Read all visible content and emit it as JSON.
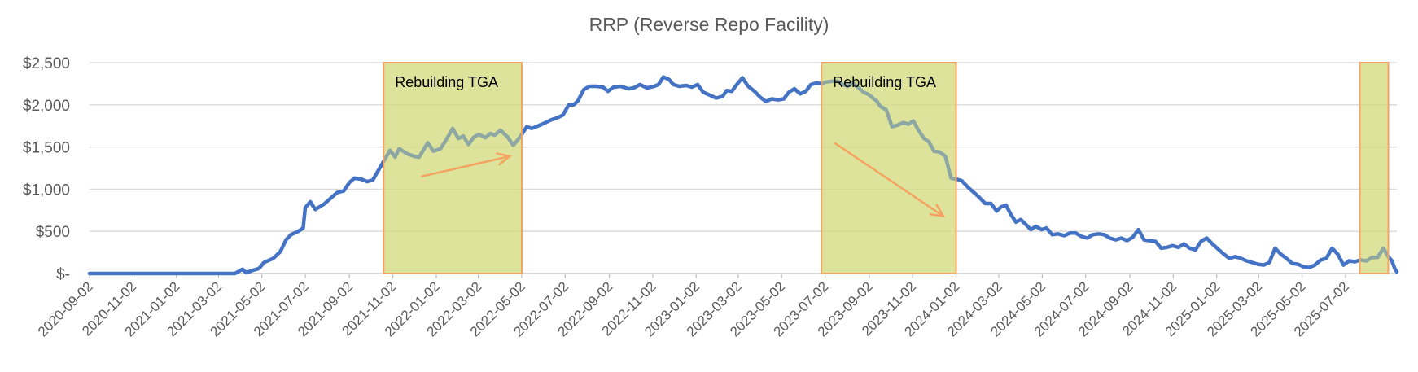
{
  "chart_data": {
    "type": "line",
    "title": "RRP (Reverse Repo Facility)",
    "xlabel": "",
    "ylabel": "",
    "ylim": [
      0,
      2500
    ],
    "y_ticks": [
      0,
      500,
      1000,
      1500,
      2000,
      2500
    ],
    "y_tick_labels": [
      "$-",
      "$500",
      "$1,000",
      "$1,500",
      "$2,000",
      "$2,500"
    ],
    "x_range": [
      "2020-09-02",
      "2025-09-12"
    ],
    "x_tick_labels": [
      "2020-09-02",
      "2020-11-02",
      "2021-01-02",
      "2021-03-02",
      "2021-05-02",
      "2021-07-02",
      "2021-09-02",
      "2021-11-02",
      "2022-01-02",
      "2022-03-02",
      "2022-05-02",
      "2022-07-02",
      "2022-09-02",
      "2022-11-02",
      "2023-01-02",
      "2023-03-02",
      "2023-05-02",
      "2023-07-02",
      "2023-09-02",
      "2023-11-02",
      "2024-01-02",
      "2024-03-02",
      "2024-05-02",
      "2024-07-02",
      "2024-09-02",
      "2024-11-02",
      "2025-01-02",
      "2025-03-02",
      "2025-05-02",
      "2025-07-02"
    ],
    "grid": true,
    "line_color": "#4472c4",
    "highlight_fill": "#d6dc82",
    "highlight_border": "#f4a460",
    "arrow_color": "#f4a460",
    "highlights": [
      {
        "label": "Rebuilding TGA",
        "x_start": "2021-10-20",
        "x_end": "2022-05-02",
        "arrow": {
          "from": [
            "2021-12-12",
            1150
          ],
          "to": [
            "2022-04-15",
            1390
          ]
        }
      },
      {
        "label": "Rebuilding TGA",
        "x_start": "2023-06-27",
        "x_end": "2024-01-02",
        "arrow": {
          "from": [
            "2023-07-15",
            1550
          ],
          "to": [
            "2023-12-15",
            680
          ]
        }
      },
      {
        "label": "",
        "x_start": "2025-07-22",
        "x_end": "2025-08-31"
      }
    ],
    "series": [
      {
        "points": [
          [
            "2020-09-02",
            0
          ],
          [
            "2020-12-01",
            0
          ],
          [
            "2021-03-01",
            0
          ],
          [
            "2021-03-25",
            0
          ],
          [
            "2021-04-05",
            50
          ],
          [
            "2021-04-10",
            10
          ],
          [
            "2021-04-20",
            40
          ],
          [
            "2021-04-28",
            60
          ],
          [
            "2021-05-05",
            130
          ],
          [
            "2021-05-18",
            180
          ],
          [
            "2021-05-28",
            260
          ],
          [
            "2021-06-05",
            400
          ],
          [
            "2021-06-12",
            460
          ],
          [
            "2021-06-22",
            500
          ],
          [
            "2021-06-29",
            540
          ],
          [
            "2021-07-02",
            780
          ],
          [
            "2021-07-09",
            850
          ],
          [
            "2021-07-16",
            760
          ],
          [
            "2021-07-28",
            820
          ],
          [
            "2021-08-09",
            910
          ],
          [
            "2021-08-16",
            960
          ],
          [
            "2021-08-25",
            980
          ],
          [
            "2021-09-02",
            1080
          ],
          [
            "2021-09-09",
            1130
          ],
          [
            "2021-09-18",
            1120
          ],
          [
            "2021-09-27",
            1090
          ],
          [
            "2021-10-05",
            1110
          ],
          [
            "2021-10-18",
            1300
          ],
          [
            "2021-10-29",
            1460
          ],
          [
            "2021-11-05",
            1380
          ],
          [
            "2021-11-11",
            1480
          ],
          [
            "2021-11-22",
            1420
          ],
          [
            "2021-12-02",
            1390
          ],
          [
            "2021-12-09",
            1380
          ],
          [
            "2021-12-21",
            1550
          ],
          [
            "2021-12-29",
            1450
          ],
          [
            "2022-01-08",
            1480
          ],
          [
            "2022-01-17",
            1600
          ],
          [
            "2022-01-25",
            1720
          ],
          [
            "2022-02-02",
            1600
          ],
          [
            "2022-02-09",
            1630
          ],
          [
            "2022-02-16",
            1530
          ],
          [
            "2022-02-24",
            1620
          ],
          [
            "2022-03-03",
            1650
          ],
          [
            "2022-03-12",
            1610
          ],
          [
            "2022-03-19",
            1660
          ],
          [
            "2022-03-25",
            1640
          ],
          [
            "2022-04-02",
            1700
          ],
          [
            "2022-04-12",
            1620
          ],
          [
            "2022-04-20",
            1520
          ],
          [
            "2022-04-26",
            1580
          ],
          [
            "2022-05-02",
            1650
          ],
          [
            "2022-05-09",
            1740
          ],
          [
            "2022-05-16",
            1720
          ],
          [
            "2022-05-25",
            1750
          ],
          [
            "2022-06-02",
            1780
          ],
          [
            "2022-06-12",
            1820
          ],
          [
            "2022-06-22",
            1850
          ],
          [
            "2022-06-29",
            1880
          ],
          [
            "2022-07-07",
            2000
          ],
          [
            "2022-07-14",
            2000
          ],
          [
            "2022-07-20",
            2050
          ],
          [
            "2022-07-28",
            2180
          ],
          [
            "2022-08-05",
            2220
          ],
          [
            "2022-08-15",
            2220
          ],
          [
            "2022-08-24",
            2210
          ],
          [
            "2022-08-31",
            2160
          ],
          [
            "2022-09-08",
            2210
          ],
          [
            "2022-09-18",
            2220
          ],
          [
            "2022-09-29",
            2190
          ],
          [
            "2022-10-06",
            2200
          ],
          [
            "2022-10-15",
            2240
          ],
          [
            "2022-10-25",
            2200
          ],
          [
            "2022-11-04",
            2220
          ],
          [
            "2022-11-10",
            2240
          ],
          [
            "2022-11-17",
            2330
          ],
          [
            "2022-11-25",
            2300
          ],
          [
            "2022-12-01",
            2240
          ],
          [
            "2022-12-09",
            2220
          ],
          [
            "2022-12-19",
            2230
          ],
          [
            "2022-12-27",
            2210
          ],
          [
            "2023-01-04",
            2240
          ],
          [
            "2023-01-12",
            2150
          ],
          [
            "2023-01-20",
            2120
          ],
          [
            "2023-01-30",
            2080
          ],
          [
            "2023-02-08",
            2100
          ],
          [
            "2023-02-14",
            2170
          ],
          [
            "2023-02-21",
            2160
          ],
          [
            "2023-02-28",
            2240
          ],
          [
            "2023-03-08",
            2320
          ],
          [
            "2023-03-16",
            2220
          ],
          [
            "2023-03-25",
            2160
          ],
          [
            "2023-04-02",
            2090
          ],
          [
            "2023-04-10",
            2040
          ],
          [
            "2023-04-18",
            2070
          ],
          [
            "2023-04-27",
            2060
          ],
          [
            "2023-05-05",
            2070
          ],
          [
            "2023-05-12",
            2150
          ],
          [
            "2023-05-20",
            2190
          ],
          [
            "2023-05-28",
            2130
          ],
          [
            "2023-06-05",
            2160
          ],
          [
            "2023-06-12",
            2240
          ],
          [
            "2023-06-20",
            2260
          ],
          [
            "2023-06-27",
            2250
          ],
          [
            "2023-07-03",
            2270
          ],
          [
            "2023-07-12",
            2280
          ],
          [
            "2023-07-20",
            2280
          ],
          [
            "2023-07-27",
            2240
          ],
          [
            "2023-08-03",
            2220
          ],
          [
            "2023-08-10",
            2260
          ],
          [
            "2023-08-18",
            2200
          ],
          [
            "2023-08-25",
            2150
          ],
          [
            "2023-09-02",
            2120
          ],
          [
            "2023-09-07",
            2080
          ],
          [
            "2023-09-12",
            2050
          ],
          [
            "2023-09-18",
            1980
          ],
          [
            "2023-09-26",
            1940
          ],
          [
            "2023-10-04",
            1740
          ],
          [
            "2023-10-12",
            1760
          ],
          [
            "2023-10-20",
            1790
          ],
          [
            "2023-10-27",
            1770
          ],
          [
            "2023-11-03",
            1810
          ],
          [
            "2023-11-10",
            1700
          ],
          [
            "2023-11-18",
            1600
          ],
          [
            "2023-11-25",
            1560
          ],
          [
            "2023-12-02",
            1450
          ],
          [
            "2023-12-10",
            1440
          ],
          [
            "2023-12-18",
            1390
          ],
          [
            "2023-12-26",
            1130
          ],
          [
            "2024-01-02",
            1120
          ],
          [
            "2024-01-10",
            1100
          ],
          [
            "2024-01-19",
            1020
          ],
          [
            "2024-01-27",
            960
          ],
          [
            "2024-02-04",
            900
          ],
          [
            "2024-02-12",
            830
          ],
          [
            "2024-02-20",
            830
          ],
          [
            "2024-02-28",
            740
          ],
          [
            "2024-03-05",
            790
          ],
          [
            "2024-03-12",
            810
          ],
          [
            "2024-03-19",
            700
          ],
          [
            "2024-03-26",
            610
          ],
          [
            "2024-04-02",
            640
          ],
          [
            "2024-04-09",
            580
          ],
          [
            "2024-04-16",
            520
          ],
          [
            "2024-04-23",
            560
          ],
          [
            "2024-05-01",
            520
          ],
          [
            "2024-05-08",
            540
          ],
          [
            "2024-05-16",
            460
          ],
          [
            "2024-05-24",
            470
          ],
          [
            "2024-06-02",
            450
          ],
          [
            "2024-06-10",
            480
          ],
          [
            "2024-06-18",
            480
          ],
          [
            "2024-06-26",
            440
          ],
          [
            "2024-07-04",
            420
          ],
          [
            "2024-07-12",
            460
          ],
          [
            "2024-07-20",
            470
          ],
          [
            "2024-07-28",
            460
          ],
          [
            "2024-08-05",
            420
          ],
          [
            "2024-08-13",
            400
          ],
          [
            "2024-08-21",
            420
          ],
          [
            "2024-08-29",
            390
          ],
          [
            "2024-09-06",
            430
          ],
          [
            "2024-09-14",
            520
          ],
          [
            "2024-09-22",
            400
          ],
          [
            "2024-09-30",
            390
          ],
          [
            "2024-10-08",
            380
          ],
          [
            "2024-10-16",
            300
          ],
          [
            "2024-10-24",
            310
          ],
          [
            "2024-11-01",
            330
          ],
          [
            "2024-11-09",
            310
          ],
          [
            "2024-11-17",
            350
          ],
          [
            "2024-11-25",
            300
          ],
          [
            "2024-12-03",
            280
          ],
          [
            "2024-12-11",
            380
          ],
          [
            "2024-12-19",
            420
          ],
          [
            "2024-12-27",
            350
          ],
          [
            "2025-01-04",
            290
          ],
          [
            "2025-01-12",
            230
          ],
          [
            "2025-01-20",
            180
          ],
          [
            "2025-01-28",
            200
          ],
          [
            "2025-02-05",
            180
          ],
          [
            "2025-02-13",
            150
          ],
          [
            "2025-02-21",
            130
          ],
          [
            "2025-03-01",
            110
          ],
          [
            "2025-03-09",
            100
          ],
          [
            "2025-03-17",
            130
          ],
          [
            "2025-03-25",
            300
          ],
          [
            "2025-04-02",
            230
          ],
          [
            "2025-04-10",
            180
          ],
          [
            "2025-04-18",
            120
          ],
          [
            "2025-04-26",
            110
          ],
          [
            "2025-05-04",
            80
          ],
          [
            "2025-05-12",
            70
          ],
          [
            "2025-05-20",
            100
          ],
          [
            "2025-05-28",
            160
          ],
          [
            "2025-06-05",
            180
          ],
          [
            "2025-06-13",
            300
          ],
          [
            "2025-06-21",
            230
          ],
          [
            "2025-06-29",
            100
          ],
          [
            "2025-07-07",
            150
          ],
          [
            "2025-07-15",
            140
          ],
          [
            "2025-07-23",
            160
          ],
          [
            "2025-07-31",
            150
          ],
          [
            "2025-08-08",
            190
          ],
          [
            "2025-08-16",
            190
          ],
          [
            "2025-08-24",
            300
          ],
          [
            "2025-08-31",
            200
          ],
          [
            "2025-09-05",
            150
          ],
          [
            "2025-09-09",
            60
          ],
          [
            "2025-09-12",
            20
          ]
        ]
      }
    ]
  }
}
